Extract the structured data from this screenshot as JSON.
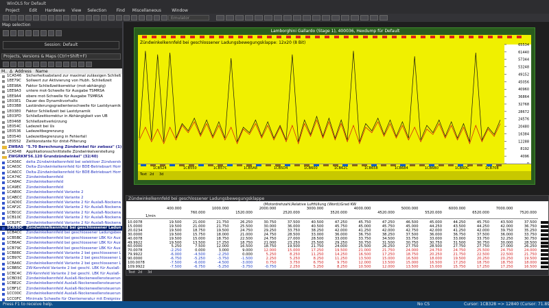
{
  "window": {
    "title": "WinOLS for Default"
  },
  "menu": [
    "Project",
    "Edit",
    "Hardware",
    "View",
    "Selection",
    "Find",
    "Miscellaneous",
    "Window"
  ],
  "toolbar": {
    "emulator": "Emulator"
  },
  "map_selection": {
    "title": "Map selection",
    "session": "Session: Default",
    "search": "Projects, Versions & Maps (Ctrl+Shift+F)",
    "columns": [
      "M..",
      "Δ",
      "Address",
      "Name"
    ],
    "items": [
      {
        "address": "1CA546",
        "name": "Sicherheitsabstand zur maximal zulässigen Schließzeit"
      },
      {
        "address": "1EE79C",
        "name": "Sollwert zur Aktivierung von Hubh. Schließzeit"
      },
      {
        "address": "1EE98A",
        "name": "Faktor Schließzeitkorrektur (mot-abhängig)"
      },
      {
        "address": "1EE9A3",
        "name": "untere mot-Schwelle für Ausgabe TSMRSA"
      },
      {
        "address": "1EE9A4",
        "name": "obere mot-Schwelle für Ausgabe TSMRSA"
      },
      {
        "address": "1E03E1",
        "name": "Dauer des Dynamikvorhalts"
      },
      {
        "address": "1E03B8",
        "name": "Laständerungsgradientenschwelle für Lastdynamikauslösung"
      },
      {
        "address": "1E03E0",
        "name": "Faktor Schließzeit bei Lastdynamik"
      },
      {
        "address": "1E03FD",
        "name": "Schließzeitkorrektur in Abhängigkeit von UB"
      },
      {
        "address": "1E0468",
        "name": "Schließzeitverkürzung"
      },
      {
        "address": "1E054C",
        "name": "Ladezeit bei Us"
      },
      {
        "address": "1E0536",
        "name": "Ladezeitbegrenzung"
      },
      {
        "address": "1E0540",
        "name": "Ladezeitbegrenzung in Fehlerfall"
      },
      {
        "address": "1E0552",
        "name": "Zeitkonstante für dntst-Filterung"
      },
      {
        "folder": "ZWBAS",
        "title": "\"5.70 Berechnung Zündwinkel für zwbasz\" (1)"
      },
      {
        "address": "1CA548",
        "name": "Applikationsschnittstelle Zündwinkelverstellung"
      },
      {
        "folder": "ZWGRKN",
        "title": "\"56.120 Grundzündwinkel\" (32/40)"
      },
      {
        "address": "1CA56C",
        "name": "delta Zündwinkelkennfeld bei selektiver Zündverstellung"
      },
      {
        "address": "1CA63C",
        "name": "Delta-Zündwinkelkennfeld für BDE-Betriebsart Homogen 4-."
      },
      {
        "address": "1CA6CC",
        "name": "Delta-Zündwinkelkennfeld für BDE-Betriebsart Homogen 4-."
      },
      {
        "address": "1CA74C",
        "name": "Zündwinkelkennfeld"
      },
      {
        "address": "1CA8AC",
        "name": "Zündwinkelkennfeld"
      },
      {
        "address": "1CA9EC",
        "name": "Zündwinkelkennfeld"
      },
      {
        "address": "1CAB0C",
        "name": "Zündwinkelkennfeld Variante 2"
      },
      {
        "address": "1CABCC",
        "name": "Zündwinkelkennfeld Variante 2"
      },
      {
        "address": "1CAD0C",
        "name": "Zündwinkelkennfeld Variante 2 für Auslaß-Nockenwellenverst."
      },
      {
        "address": "1CAF2C",
        "name": "Zündwinkelkennfeld Variante 2 für Auslaß-Nockenwellenverst."
      },
      {
        "address": "1CB01C",
        "name": "Zündwinkelkennfeld Variante 2 für Auslaß-Nockenwellenverst."
      },
      {
        "address": "1CB10C",
        "name": "Zündwinkelkennfeld Variante 2 für Auslaß-Nockenwellenverst."
      },
      {
        "address": "1CB2FC",
        "name": "Zündwinkelkennfeld Variante 2 für Auslaß-Nockenwellenverst."
      },
      {
        "address": "1CB3DC",
        "name": "Zündwinkelkennfeld bei geschlossener Ladungsbewegungsklappe"
      },
      {
        "address": "1CB4CC",
        "name": "Zündwinkelkennfeld bei geschlossener Ladungsbewegungsklappe"
      },
      {
        "address": "1CB5BC",
        "name": "Zündwinkelkennfeld bei geschlossener LBK für Auslaß-Nock"
      },
      {
        "address": "1CB6AC",
        "name": "Zündwinkelkennfeld bei geschlossener LBK für Auslaß-Nock"
      },
      {
        "address": "1CB79C",
        "name": "Zündwinkelkennfeld bei geschlossener LBK für Auslaß-Nock"
      },
      {
        "address": "1CB88C",
        "name": "Zündwinkelkennfeld Variante 2 bei geschlossener Ladungs"
      },
      {
        "address": "1CB97C",
        "name": "Zündwinkelkennfeld Variante 2 bei geschlossener Ladungs"
      },
      {
        "address": "1CBA6C",
        "name": "Zündwinkelkennfeld Variante 2 bei geschlossener Ladungs"
      },
      {
        "address": "1CBB5C",
        "name": "ZW-Kennfeld Variante 2 bei geschl. LBK für Auslaß-Nock"
      },
      {
        "address": "1CBC4C",
        "name": "ZW-Kennfeld Variante 2 bei geschl. LBK für Auslaß-Nock"
      },
      {
        "address": "1CBD3C",
        "name": "Zündwinkelkennfeld Auslaß-Nockenwellensteuerung"
      },
      {
        "address": "1CBE2C",
        "name": "Zündwinkelkennfeld Auslaß-Nockenwellensteuerung"
      },
      {
        "address": "1CBF1C",
        "name": "Zündwinkelkennfeld Auslaß-Nockenwellensteuerung"
      },
      {
        "address": "1CC00C",
        "name": "Zündwinkelkennfeld Auslaß-Nockenwellensteuerung"
      },
      {
        "address": "1CC0FC",
        "name": "Minimale Schwelle für Ölentemeratur mit Ereignisvorrang"
      }
    ]
  },
  "hexdump": {
    "title": "Lamborghini Gallardo (Stage 1), 400036, Hexdump für Default",
    "map_title": "Zündwinkelkennfeld bei geschlossener Ladungsbewegungsklappe: 12x20 (8 Bit)",
    "y_labels": [
      65534,
      61440,
      57344,
      53248,
      49152,
      45056,
      40960,
      36864,
      32768,
      28672,
      24576,
      20480,
      16384,
      12288,
      8192,
      4096,
      0
    ],
    "x_labels": [
      "1CB524",
      "1CB550",
      "1CB57C",
      "1CB5A8",
      "1CB5D4",
      "1CB600",
      "1CB62C",
      "1CB658",
      "1CB684",
      "1CB6B0",
      "1CB6DC",
      "1CB708"
    ],
    "black": [
      14000,
      62000,
      13000,
      60000,
      12000,
      61000,
      14000,
      22000,
      18000,
      25000,
      16000,
      24000,
      15000,
      23000,
      14000,
      58000,
      12000,
      20000,
      17000,
      24000,
      15000,
      23000,
      14000,
      21000,
      13000,
      60000,
      12000,
      24000,
      16000,
      26000,
      15000,
      25000,
      14000,
      24000,
      13000,
      62000,
      12000,
      22000,
      18000,
      25000,
      16000,
      24000,
      15000,
      23000,
      14000,
      59000,
      13000,
      21000,
      17000,
      24000,
      15000,
      23000,
      14000,
      22000,
      12000,
      61000,
      13000,
      20000,
      16000,
      24000
    ],
    "red": [
      13000,
      20000,
      12000,
      19000,
      11000,
      20000,
      13000,
      21000,
      17000,
      23000,
      15000,
      22000,
      14000,
      21000,
      13000,
      20000,
      11000,
      19000,
      16000,
      22000,
      14000,
      21000,
      13000,
      20000,
      12000,
      21000,
      11000,
      22000,
      15000,
      24000,
      14000,
      23000,
      13000,
      22000,
      12000,
      21000,
      11000,
      20000,
      17000,
      23000,
      15000,
      22000,
      14000,
      21000,
      13000,
      20000,
      12000,
      19000,
      16000,
      22000,
      14000,
      21000,
      13000,
      20000,
      11000,
      21000,
      12000,
      19000,
      15000,
      22000
    ],
    "tabs": [
      "Text",
      "2d",
      "3d"
    ]
  },
  "table": {
    "title": "Zündwinkelkennfeld bei geschlossener Ladungsbewegungsklappe",
    "heading": "(Motordrehzahl,Relative Luftfüllung (Word))Grad KW",
    "corner": "1/min",
    "columns": [
      "400.000",
      "760.000",
      "1000.000",
      "1520.000",
      "2000.000",
      "2520.000",
      "3000.000",
      "3520.000",
      "4000.000",
      "4520.000",
      "5000.000",
      "5520.000",
      "6000.000",
      "6520.000",
      "7000.000",
      "7520.000"
    ],
    "rows": [
      {
        "label": "10.0078",
        "values": [
          "19.500",
          "21.000",
          "21.750",
          "26.250",
          "30.750",
          "37.500",
          "40.500",
          "47.250",
          "45.750",
          "47.250",
          "46.500",
          "45.000",
          "44.250",
          "45.750",
          "43.500",
          "37.500"
        ]
      },
      {
        "label": "15.0000",
        "values": [
          "19.500",
          "21.000",
          "21.750",
          "25.500",
          "30.000",
          "36.000",
          "40.500",
          "45.750",
          "45.000",
          "45.750",
          "45.000",
          "44.250",
          "43.500",
          "44.250",
          "42.000",
          "36.750"
        ]
      },
      {
        "label": "20.0234",
        "values": [
          "19.500",
          "18.750",
          "19.500",
          "24.750",
          "29.250",
          "33.750",
          "38.250",
          "42.000",
          "41.250",
          "42.000",
          "42.750",
          "42.000",
          "41.250",
          "42.000",
          "39.750",
          "35.250"
        ]
      },
      {
        "label": "30.0000",
        "values": [
          "19.500",
          "15.750",
          "18.000",
          "21.000",
          "24.750",
          "28.500",
          "33.000",
          "36.000",
          "36.750",
          "38.250",
          "37.500",
          "36.000",
          "36.750",
          "37.500",
          "36.000",
          "33.750"
        ]
      },
      {
        "label": "40.0078",
        "values": [
          "19.500",
          "15.000",
          "18.750",
          "22.500",
          "24.750",
          "27.000",
          "28.500",
          "33.000",
          "33.750",
          "34.500",
          "33.750",
          "33.000",
          "33.000",
          "33.750",
          "32.250",
          "30.750"
        ]
      },
      {
        "label": "49.9922",
        "values": [
          "19.500",
          "13.500",
          "17.250",
          "18.750",
          "21.000",
          "23.250",
          "25.500",
          "29.250",
          "30.750",
          "31.500",
          "30.750",
          "30.750",
          "31.500",
          "30.750",
          "30.000",
          "28.500"
        ]
      },
      {
        "label": "60.0000",
        "values": [
          "5.250",
          "7.500",
          "12.000",
          "16.500",
          "18.750",
          "19.500",
          "21.750",
          "24.000",
          "25.500",
          "26.250",
          "27.750",
          "28.500",
          "27.750",
          "27.750",
          "27.000",
          "26.250"
        ]
      },
      {
        "label": "70.0078",
        "values": [
          "-2.250",
          "0.000",
          "3.000",
          "9.000",
          "12.000",
          "15.000",
          "17.250",
          "19.500",
          "21.000",
          "21.750",
          "24.000",
          "24.750",
          "24.750",
          "25.500",
          "24.750",
          "24.000"
        ]
      },
      {
        "label": "79.9922",
        "values": [
          "-6.000",
          "-4.500",
          "-2.250",
          "0.000",
          "5.250",
          "8.250",
          "11.250",
          "14.250",
          "16.500",
          "17.250",
          "18.750",
          "20.250",
          "21.750",
          "22.500",
          "22.500",
          "21.750"
        ]
      },
      {
        "label": "90.0000",
        "values": [
          "-6.750",
          "-5.250",
          "-3.750",
          "-1.500",
          "2.250",
          "5.250",
          "8.250",
          "11.250",
          "13.500",
          "15.000",
          "16.500",
          "18.000",
          "19.500",
          "20.250",
          "20.250",
          "19.500"
        ]
      },
      {
        "label": "100.0078",
        "values": [
          "-7.500",
          "-6.000",
          "-4.500",
          "-3.000",
          "0.750",
          "3.750",
          "6.750",
          "9.750",
          "12.000",
          "13.500",
          "15.000",
          "16.500",
          "17.250",
          "18.750",
          "18.750",
          "18.000"
        ]
      },
      {
        "label": "109.9922",
        "values": [
          "-7.500",
          "-6.750",
          "-5.250",
          "-3.750",
          "-0.750",
          "2.250",
          "5.250",
          "8.250",
          "10.500",
          "12.000",
          "13.500",
          "15.000",
          "15.750",
          "17.250",
          "17.250",
          "16.500"
        ]
      }
    ],
    "tabs": [
      "Text",
      "2d",
      "3d"
    ]
  },
  "status": {
    "help": "Press F1 to receive help.",
    "checksum": "No CS",
    "cursor": "Cursor: 1CB328 => 12840 (12840)",
    "percent": "(Cursor: 71.8984%)"
  }
}
